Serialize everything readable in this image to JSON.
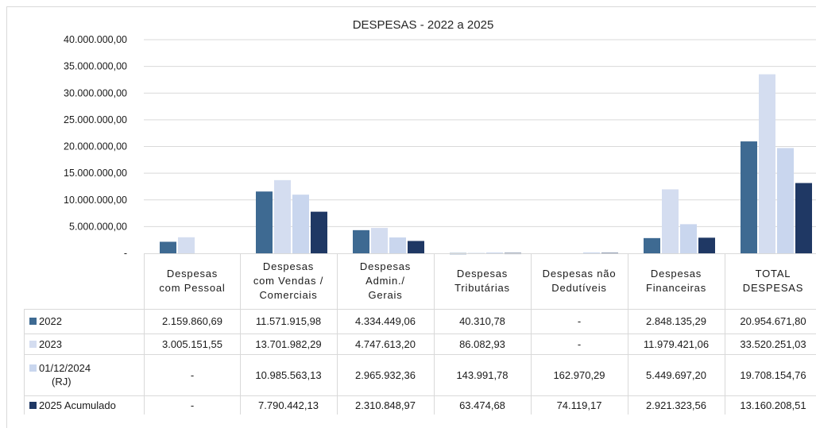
{
  "chart_data": {
    "type": "bar",
    "title": "DESPESAS - 2022 a 2025",
    "ylim": [
      0,
      40000000
    ],
    "yticks": [
      0,
      5000000,
      10000000,
      15000000,
      20000000,
      25000000,
      30000000,
      35000000,
      40000000
    ],
    "ytick_labels": [
      "-",
      "5.000.000,00",
      "10.000.000,00",
      "15.000.000,00",
      "20.000.000,00",
      "25.000.000,00",
      "30.000.000,00",
      "35.000.000,00",
      "40.000.000,00"
    ],
    "grid": true,
    "legend_placement": "data-table-left",
    "categories": [
      [
        "Despesas",
        "com Pessoal"
      ],
      [
        "Despesas",
        "com Vendas /",
        "Comerciais"
      ],
      [
        "Despesas",
        "Admin./",
        "Gerais"
      ],
      [
        "Despesas",
        "Tributárias"
      ],
      [
        "Despesas não",
        "Dedutíveis"
      ],
      [
        "Despesas",
        "Financeiras"
      ],
      [
        "TOTAL",
        "DESPESAS"
      ]
    ],
    "series": [
      {
        "name": "2022",
        "color": "#3e6a92",
        "values": [
          2159860.69,
          11571915.98,
          4334449.06,
          40310.78,
          0,
          2848135.29,
          20954671.8
        ],
        "labels": [
          "2.159.860,69",
          "11.571.915,98",
          "4.334.449,06",
          "40.310,78",
          "-",
          "2.848.135,29",
          "20.954.671,80"
        ]
      },
      {
        "name": "2023",
        "color": "#d4ddf0",
        "values": [
          3005151.55,
          13701982.29,
          4747613.2,
          86082.93,
          0,
          11979421.06,
          33520251.03
        ],
        "labels": [
          "3.005.151,55",
          "13.701.982,29",
          "4.747.613,20",
          "86.082,93",
          "-",
          "11.979.421,06",
          "33.520.251,03"
        ]
      },
      {
        "name": "01/12/2024 (RJ)",
        "name_lines": [
          "01/12/2024",
          "(RJ)"
        ],
        "color": "#c9d6ee",
        "values": [
          0,
          10985563.13,
          2965932.36,
          143991.78,
          162970.29,
          5449697.2,
          19708154.76
        ],
        "labels": [
          "-",
          "10.985.563,13",
          "2.965.932,36",
          "143.991,78",
          "162.970,29",
          "5.449.697,20",
          "19.708.154,76"
        ]
      },
      {
        "name": "2025 Acumulado",
        "color": "#1f3864",
        "values": [
          0,
          7790442.13,
          2310848.97,
          63474.68,
          74119.17,
          2921323.56,
          13160208.51
        ],
        "labels": [
          "-",
          "7.790.442,13",
          "2.310.848,97",
          "63.474,68",
          "74.119,17",
          "2.921.323,56",
          "13.160.208,51"
        ]
      }
    ]
  }
}
